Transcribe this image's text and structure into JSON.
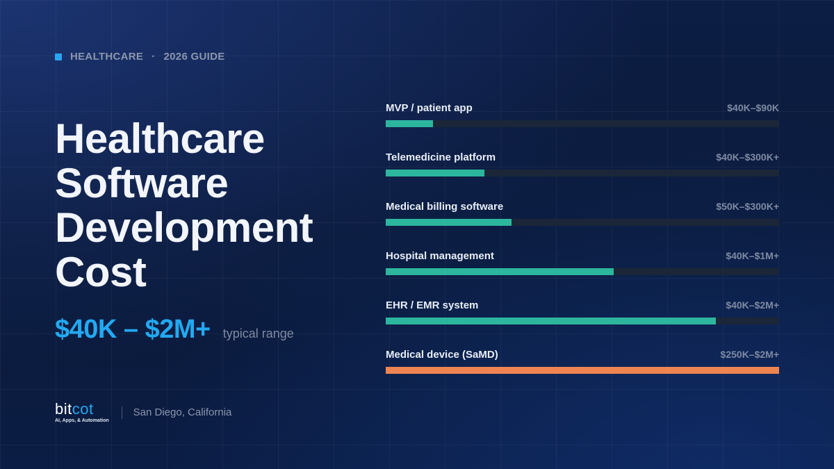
{
  "header": {
    "category": "HEALTHCARE",
    "separator": "·",
    "edition": "2026 GUIDE"
  },
  "title_lines": [
    "Healthcare",
    "Software",
    "Development",
    "Cost"
  ],
  "range": {
    "value": "$40K – $2M+",
    "label": "typical range"
  },
  "footer": {
    "logo_prefix": "bit",
    "logo_accent": "cot",
    "logo_tagline": "AI, Apps, & Automation",
    "location": "San Diego, California"
  },
  "colors": {
    "accent_blue": "#22a9f2",
    "bar_teal": "#2db69e",
    "bar_orange": "#ee8452",
    "track": "#1b2638"
  },
  "chart_data": {
    "type": "bar",
    "orientation": "horizontal",
    "categories": [
      "MVP / patient app",
      "Telemedicine platform",
      "Medical billing software",
      "Hospital management",
      "EHR / EMR system",
      "Medical device (SaMD)"
    ],
    "value_labels": [
      "$40K–$90K",
      "$40K–$300K+",
      "$50K–$300K+",
      "$40K–$1M+",
      "$40K–$2M+",
      "$250K–$2M+"
    ],
    "values": [
      0.12,
      0.25,
      0.32,
      0.58,
      0.84,
      1.0
    ],
    "bar_colors": [
      "#2db69e",
      "#2db69e",
      "#2db69e",
      "#2db69e",
      "#2db69e",
      "#ee8452"
    ],
    "xlim": [
      0,
      1
    ]
  }
}
